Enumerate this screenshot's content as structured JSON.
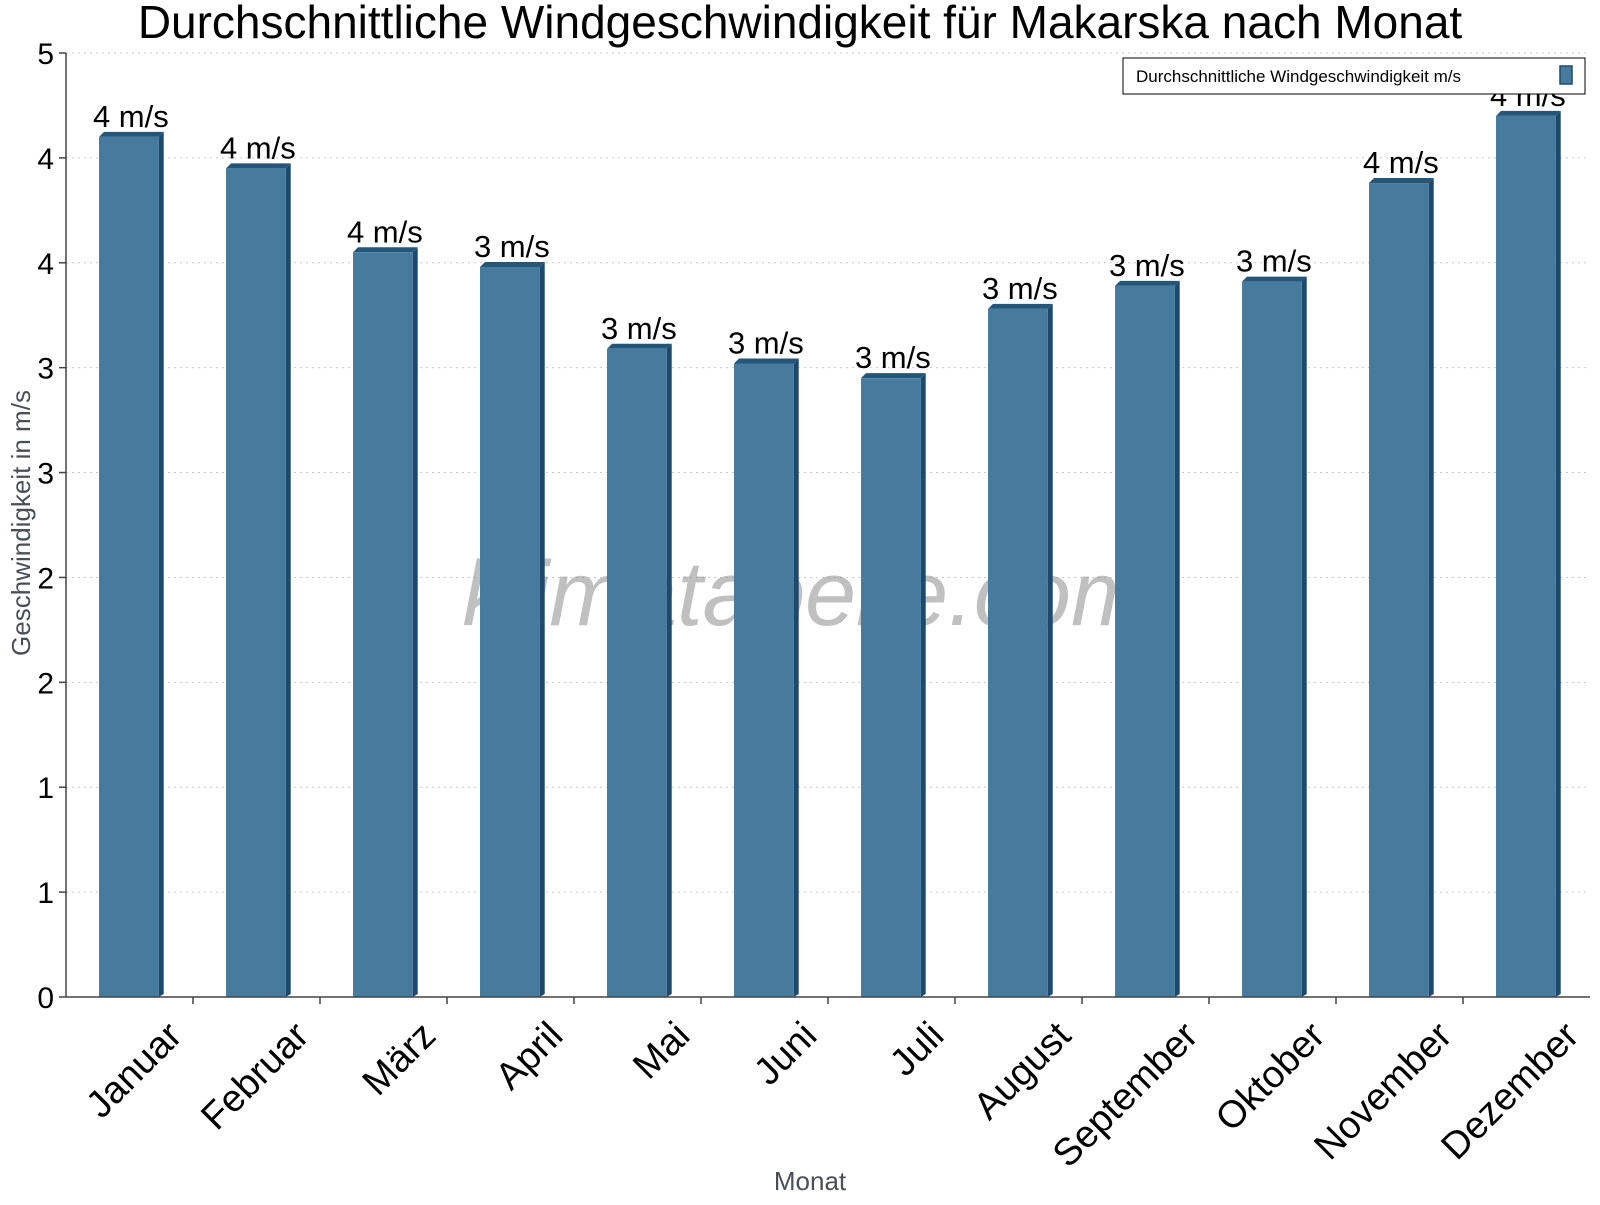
{
  "chart_data": {
    "type": "bar",
    "title": "Durchschnittliche Windgeschwindigkeit für Makarska nach Monat",
    "xlabel": "Monat",
    "ylabel": "Geschwindigkeit in m/s",
    "categories": [
      "Januar",
      "Februar",
      "März",
      "April",
      "Mai",
      "Juni",
      "Juli",
      "August",
      "September",
      "Oktober",
      "November",
      "Dezember"
    ],
    "series": [
      {
        "name": "Durchschnittliche Windgeschwindigkeit m/s",
        "values": [
          4.1,
          3.95,
          3.55,
          3.48,
          3.09,
          3.02,
          2.95,
          3.28,
          3.39,
          3.41,
          3.88,
          4.2
        ],
        "labels": [
          "4 m/s",
          "4 m/s",
          "4 m/s",
          "3 m/s",
          "3 m/s",
          "3 m/s",
          "3 m/s",
          "3 m/s",
          "3 m/s",
          "3 m/s",
          "4 m/s",
          "4 m/s"
        ]
      }
    ],
    "ylim": [
      0,
      4.5
    ],
    "y_tick_labels": [
      "0",
      "1",
      "1",
      "2",
      "2",
      "3",
      "3",
      "4",
      "4",
      "5"
    ],
    "grid": true,
    "legend_position": "top-right",
    "colors": {
      "bar": "#467b9e",
      "bar_side": "#1d4a6c",
      "bar_top": "#24567a"
    }
  },
  "watermark": "klimatabelle.com"
}
